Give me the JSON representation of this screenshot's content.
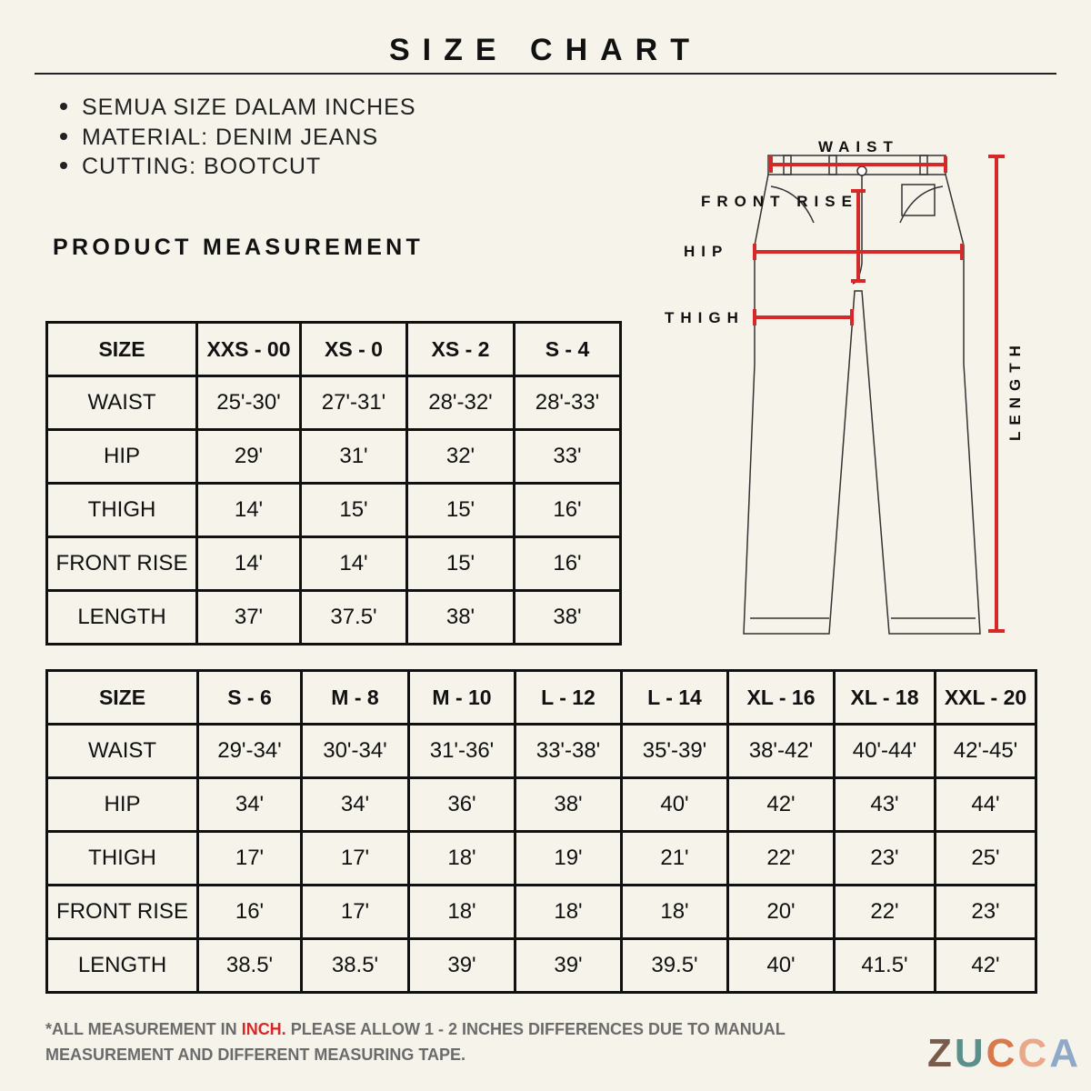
{
  "title": "SIZE CHART",
  "bullets": [
    "SEMUA SIZE DALAM INCHES",
    "MATERIAL: DENIM JEANS",
    "CUTTING: BOOTCUT"
  ],
  "section_title": "PRODUCT MEASUREMENT",
  "diagram_labels": {
    "waist": "WAIST",
    "front_rise": "FRONT RISE",
    "hip": "HIP",
    "thigh": "THIGH",
    "length": "LENGTH"
  },
  "colors": {
    "accent": "#d62828",
    "background": "#f5f3ea",
    "note": "#6b6b6b"
  },
  "table1": {
    "header": [
      "SIZE",
      "XXS - 00",
      "XS - 0",
      "XS - 2",
      "S - 4"
    ],
    "rows": [
      [
        "WAIST",
        "25'-30'",
        "27'-31'",
        "28'-32'",
        "28'-33'"
      ],
      [
        "HIP",
        "29'",
        "31'",
        "32'",
        "33'"
      ],
      [
        "THIGH",
        "14'",
        "15'",
        "15'",
        "16'"
      ],
      [
        "FRONT RISE",
        "14'",
        "14'",
        "15'",
        "16'"
      ],
      [
        "LENGTH",
        "37'",
        "37.5'",
        "38'",
        "38'"
      ]
    ]
  },
  "table2": {
    "header": [
      "SIZE",
      "S - 6",
      "M - 8",
      "M - 10",
      "L - 12",
      "L - 14",
      "XL - 16",
      "XL - 18",
      "XXL - 20"
    ],
    "rows": [
      [
        "WAIST",
        "29'-34'",
        "30'-34'",
        "31'-36'",
        "33'-38'",
        "35'-39'",
        "38'-42'",
        "40'-44'",
        "42'-45'"
      ],
      [
        "HIP",
        "34'",
        "34'",
        "36'",
        "38'",
        "40'",
        "42'",
        "43'",
        "44'"
      ],
      [
        "THIGH",
        "17'",
        "17'",
        "18'",
        "19'",
        "21'",
        "22'",
        "23'",
        "25'"
      ],
      [
        "FRONT RISE",
        "16'",
        "17'",
        "18'",
        "18'",
        "18'",
        "20'",
        "22'",
        "23'"
      ],
      [
        "LENGTH",
        "38.5'",
        "38.5'",
        "39'",
        "39'",
        "39.5'",
        "40'",
        "41.5'",
        "42'"
      ]
    ]
  },
  "note": {
    "prefix": "*ALL MEASUREMENT IN ",
    "highlight": "INCH.",
    "suffix": " PLEASE ALLOW 1 - 2 INCHES DIFFERENCES DUE TO MANUAL MEASUREMENT AND DIFFERENT MEASURING TAPE."
  },
  "brand": {
    "letters": [
      "Z",
      "U",
      "C",
      "C",
      "A"
    ],
    "colors": [
      "#7a5a4a",
      "#5b8f8a",
      "#d9784a",
      "#e8a889",
      "#8fa9c9"
    ]
  }
}
